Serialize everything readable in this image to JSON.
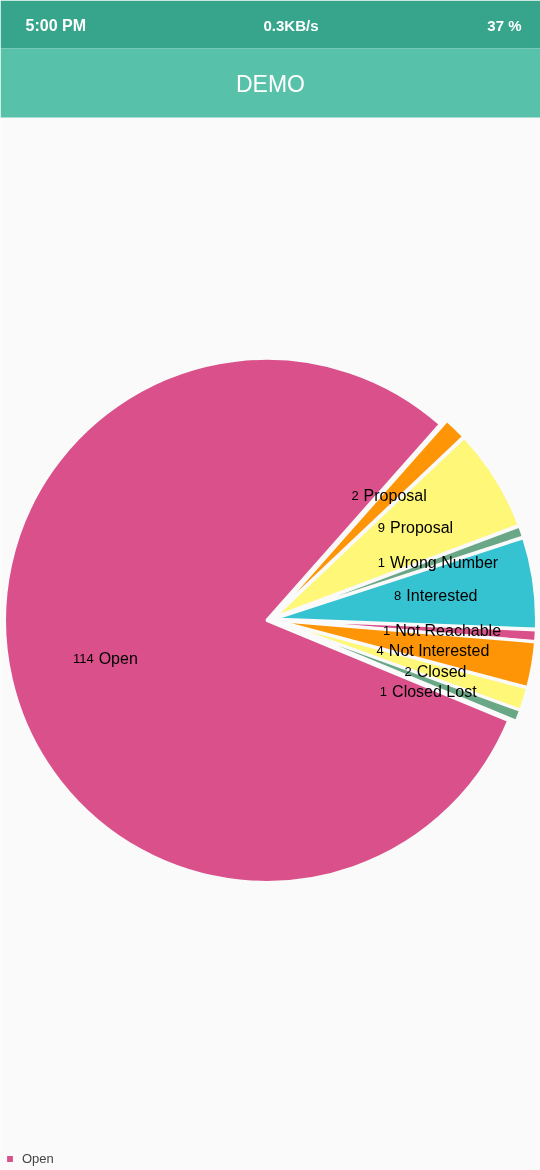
{
  "chart_data": {
    "type": "pie",
    "title": "DEMO",
    "categories": [
      "Open",
      "Proposal",
      "Proposal",
      "Wrong Number",
      "Interested",
      "Not Reachable",
      "Not Interested",
      "Closed",
      "Closed Lost"
    ],
    "values": [
      114,
      2,
      9,
      1,
      8,
      1,
      4,
      2,
      1
    ],
    "colors": [
      "#d9508a",
      "#fe9507",
      "#fef778",
      "#6aa786",
      "#35c2d1",
      "#d9508a",
      "#fe9507",
      "#fef778",
      "#6aa786"
    ],
    "data_labels": true,
    "legend": "bottom left",
    "annotations": [
      "5:00 PM",
      "0.3KB/s",
      "37 %"
    ]
  }
}
